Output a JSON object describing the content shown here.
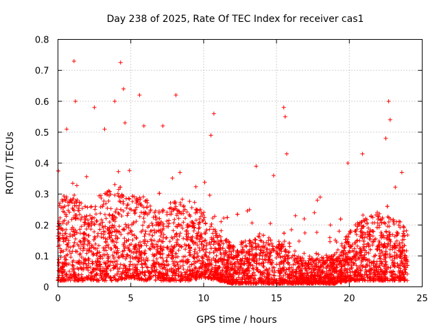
{
  "chart_data": {
    "type": "scatter",
    "title": "Day 238 of 2025, Rate Of TEC Index for receiver cas1",
    "xlabel": "GPS time / hours",
    "ylabel": "ROTI / TECUs",
    "xlim": [
      0,
      25
    ],
    "ylim": [
      0,
      0.8
    ],
    "xticks": [
      0,
      5,
      10,
      15,
      20,
      25
    ],
    "yticks": [
      0,
      0.1,
      0.2,
      0.3,
      0.4,
      0.5,
      0.6,
      0.7,
      0.8
    ],
    "xtick_labels": [
      "0",
      "5",
      "10",
      "15",
      "20",
      "25"
    ],
    "ytick_labels": [
      "0",
      "0.1",
      "0.2",
      "0.3",
      "0.4",
      "0.5",
      "0.6",
      "0.7",
      "0.8"
    ],
    "grid": true,
    "marker": "+",
    "color": "#ff0000",
    "data_x_range": [
      0,
      24
    ],
    "envelope_hours": [
      0,
      1,
      2,
      3,
      4,
      5,
      6,
      7,
      8,
      9,
      10,
      11,
      12,
      13,
      14,
      15,
      16,
      17,
      18,
      19,
      20,
      21,
      22,
      23,
      24
    ],
    "envelope_typical_max": [
      0.28,
      0.3,
      0.27,
      0.3,
      0.33,
      0.3,
      0.28,
      0.25,
      0.28,
      0.26,
      0.25,
      0.17,
      0.14,
      0.15,
      0.17,
      0.16,
      0.11,
      0.09,
      0.1,
      0.11,
      0.18,
      0.23,
      0.24,
      0.22,
      0.2
    ],
    "envelope_typical_min": [
      0.02,
      0.02,
      0.02,
      0.02,
      0.02,
      0.03,
      0.02,
      0.02,
      0.02,
      0.02,
      0.03,
      0.02,
      0.01,
      0.01,
      0.01,
      0.01,
      0.01,
      0.01,
      0.01,
      0.01,
      0.02,
      0.02,
      0.02,
      0.02,
      0.02
    ],
    "notable_points": [
      {
        "x": 1.1,
        "y": 0.73
      },
      {
        "x": 4.3,
        "y": 0.725
      },
      {
        "x": 4.5,
        "y": 0.64
      },
      {
        "x": 5.6,
        "y": 0.62
      },
      {
        "x": 8.1,
        "y": 0.62
      },
      {
        "x": 1.2,
        "y": 0.6
      },
      {
        "x": 3.9,
        "y": 0.6
      },
      {
        "x": 22.7,
        "y": 0.6
      },
      {
        "x": 2.5,
        "y": 0.58
      },
      {
        "x": 15.5,
        "y": 0.58
      },
      {
        "x": 10.7,
        "y": 0.56
      },
      {
        "x": 15.6,
        "y": 0.55
      },
      {
        "x": 22.8,
        "y": 0.54
      },
      {
        "x": 4.6,
        "y": 0.53
      },
      {
        "x": 5.9,
        "y": 0.52
      },
      {
        "x": 7.2,
        "y": 0.52
      },
      {
        "x": 0.6,
        "y": 0.51
      },
      {
        "x": 3.2,
        "y": 0.51
      },
      {
        "x": 10.5,
        "y": 0.49
      },
      {
        "x": 22.5,
        "y": 0.48
      },
      {
        "x": 15.7,
        "y": 0.43
      },
      {
        "x": 20.9,
        "y": 0.43
      },
      {
        "x": 13.6,
        "y": 0.39
      },
      {
        "x": 19.9,
        "y": 0.4
      },
      {
        "x": 23.6,
        "y": 0.37
      },
      {
        "x": 14.8,
        "y": 0.36
      },
      {
        "x": 18.0,
        "y": 0.29
      },
      {
        "x": 17.8,
        "y": 0.28
      },
      {
        "x": 16.3,
        "y": 0.23
      },
      {
        "x": 17.6,
        "y": 0.24
      },
      {
        "x": 18.7,
        "y": 0.2
      },
      {
        "x": 16.9,
        "y": 0.22
      },
      {
        "x": 19.3,
        "y": 0.18
      }
    ]
  }
}
